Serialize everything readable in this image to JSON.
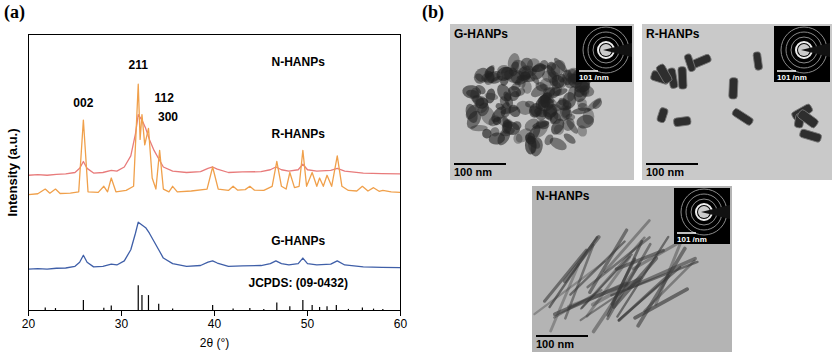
{
  "chart_data": {
    "type": "line",
    "x_label": "2θ (°)",
    "y_label": "Intensity (a.u.)",
    "xlim": [
      20,
      60
    ],
    "xticks": [
      20,
      30,
      40,
      50,
      60
    ],
    "ylim": [
      0,
      100
    ],
    "yticks": [],
    "tick_labels": "x",
    "grid": false,
    "series": [
      {
        "name": "N-HANPs",
        "color": "#e87b7b",
        "label_at": [
          49,
          90
        ],
        "x": [
          20,
          21,
          22,
          23,
          24,
          25,
          25.5,
          25.9,
          26.3,
          27,
          28,
          28.9,
          29.5,
          30.3,
          31,
          31.5,
          31.8,
          32.2,
          32.6,
          33,
          33.5,
          34,
          34.5,
          35.5,
          37,
          38.5,
          39.3,
          39.8,
          40.3,
          41.5,
          43,
          45,
          46,
          46.6,
          47.2,
          48,
          49,
          49.5,
          50,
          51,
          52.5,
          53.2,
          54,
          56,
          58,
          60
        ],
        "values": [
          49,
          49.2,
          49,
          49.3,
          49.5,
          50,
          51.5,
          54,
          51.5,
          49.8,
          50,
          50.8,
          50.5,
          52,
          56,
          64,
          71,
          69,
          66,
          62,
          58,
          55,
          52,
          50.5,
          50,
          50.3,
          51.5,
          52,
          51.2,
          50,
          50.2,
          50.3,
          51,
          52,
          51,
          50.5,
          51,
          53,
          51,
          50.5,
          50.8,
          51.5,
          50.5,
          49.8,
          49.6,
          49.5
        ]
      },
      {
        "name": "R-HANPs",
        "color": "#f0a04b",
        "label_at": [
          49,
          64
        ],
        "x": [
          20,
          21,
          21.8,
          22.3,
          22.9,
          23.4,
          24.5,
          25.4,
          25.9,
          26.4,
          27.5,
          28.1,
          28.5,
          28.9,
          29.4,
          30.5,
          31.3,
          31.8,
          32.0,
          32.2,
          32.5,
          32.9,
          33.3,
          33.7,
          34.1,
          34.5,
          35.1,
          35.5,
          36,
          37.5,
          39.2,
          39.8,
          40.4,
          41.5,
          42.0,
          42.5,
          43.3,
          43.8,
          44.3,
          45.3,
          46.2,
          46.7,
          47.2,
          47.7,
          48.1,
          48.6,
          49.1,
          49.5,
          49.9,
          50.5,
          51.0,
          51.3,
          51.7,
          52.1,
          52.6,
          53.2,
          53.7,
          54.4,
          55.3,
          55.9,
          56.5,
          57.1,
          57.7,
          58.1,
          59,
          60
        ],
        "values": [
          42,
          42.3,
          44,
          42.5,
          44,
          42.4,
          42.5,
          43,
          69,
          43,
          42.8,
          45,
          43,
          48,
          43,
          43.5,
          45,
          82,
          62,
          71,
          60,
          66,
          48,
          44,
          58,
          44,
          43,
          45,
          43,
          43.3,
          44,
          52,
          44,
          43.5,
          45,
          43.6,
          43.8,
          45,
          43.6,
          43.5,
          45,
          54,
          45,
          44,
          50,
          44.5,
          45,
          58,
          45,
          50,
          45,
          48,
          45,
          49,
          45,
          56,
          45,
          43.5,
          43.3,
          45,
          43.3,
          44.5,
          43.2,
          43.5,
          43,
          42.8
        ]
      },
      {
        "name": "G-HANPs",
        "color": "#3f5fa8",
        "label_at": [
          49,
          25
        ],
        "x": [
          20,
          21,
          22,
          23,
          24,
          25,
          25.5,
          25.9,
          26.3,
          27,
          28,
          28.9,
          29.5,
          30.3,
          31,
          31.5,
          31.8,
          32.2,
          32.6,
          33,
          33.5,
          34,
          34.5,
          35.5,
          37,
          38.5,
          39.3,
          39.8,
          40.3,
          41.5,
          43,
          45,
          46,
          46.6,
          47.2,
          48,
          49,
          49.5,
          50,
          51,
          52.5,
          53.2,
          54,
          56,
          58,
          60
        ],
        "values": [
          15,
          15.2,
          15,
          15.3,
          15.4,
          16,
          17.5,
          20,
          17.5,
          15.8,
          16,
          16.8,
          16.5,
          18,
          22,
          28,
          32,
          31,
          30,
          28,
          25,
          22,
          19,
          17,
          16,
          16.3,
          17.5,
          18,
          17.2,
          16,
          16.2,
          16.3,
          17,
          18,
          17,
          16.5,
          17,
          19,
          17,
          16.5,
          16.8,
          18,
          16.5,
          15.8,
          15.6,
          15.5
        ]
      },
      {
        "name": "JCPDS: (09-0432)",
        "type": "stick",
        "color": "#000000",
        "label_at": [
          49,
          10
        ],
        "x": [
          21.8,
          22.9,
          25.9,
          28.1,
          28.9,
          31.8,
          32.2,
          32.9,
          34.0,
          35.5,
          39.8,
          42.0,
          43.8,
          45.3,
          46.7,
          48.1,
          49.5,
          50.5,
          51.3,
          52.1,
          53.1,
          54.4,
          55.9,
          57.1,
          58.1
        ],
        "values": [
          0.9,
          0.7,
          3.6,
          0.8,
          1.6,
          9,
          5.4,
          5.4,
          2.3,
          0.5,
          1.8,
          0.5,
          0.7,
          0.4,
          2.7,
          1.4,
          3.6,
          1.8,
          1.1,
          1.4,
          1.8,
          0.4,
          0.9,
          0.5,
          0.4
        ]
      }
    ],
    "annotations": [
      {
        "text": "211",
        "x": 31.8,
        "y": 89
      },
      {
        "text": "002",
        "x": 25.9,
        "y": 75
      },
      {
        "text": "112",
        "x": 34.6,
        "y": 77
      },
      {
        "text": "300",
        "x": 35.0,
        "y": 70
      }
    ]
  },
  "figure": {
    "panel_letters": [
      "(a)",
      "(b)"
    ],
    "micrographs": [
      {
        "label": "G-HANPs",
        "scale_bar": "100 nm",
        "diffraction_scale_bar": "101 /nm"
      },
      {
        "label": "R-HANPs",
        "scale_bar": "100 nm",
        "diffraction_scale_bar": "101 /nm"
      },
      {
        "label": "N-HANPs",
        "scale_bar": "100 nm",
        "diffraction_scale_bar": "101 /nm"
      }
    ]
  }
}
